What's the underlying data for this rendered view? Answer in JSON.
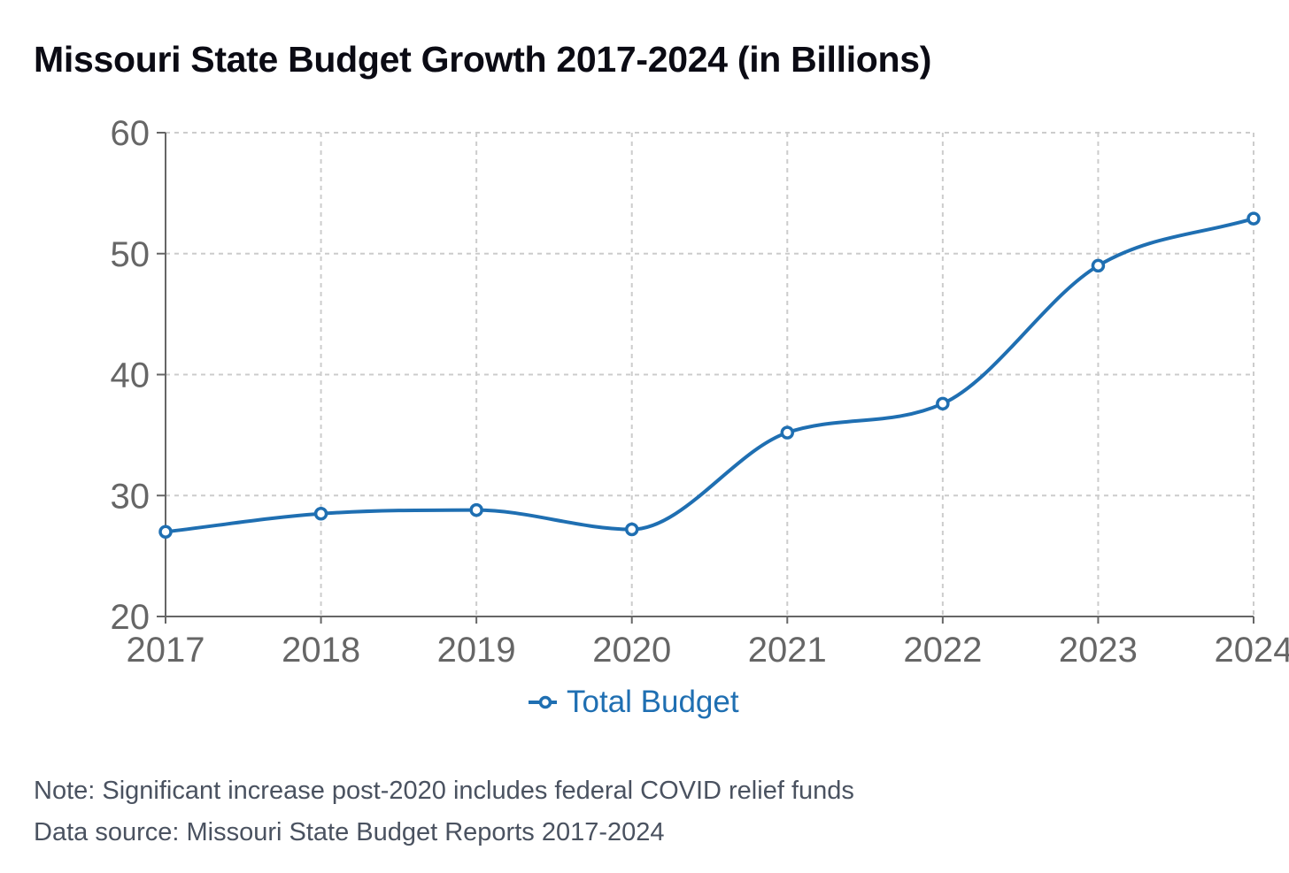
{
  "chart_data": {
    "type": "line",
    "title": "Missouri State Budget Growth 2017-2024 (in Billions)",
    "xlabel": "",
    "ylabel": "",
    "categories": [
      "2017",
      "2018",
      "2019",
      "2020",
      "2021",
      "2022",
      "2023",
      "2024"
    ],
    "series": [
      {
        "name": "Total Budget",
        "color": "#1f6fb2",
        "values": [
          27.0,
          28.5,
          28.8,
          27.2,
          35.2,
          37.6,
          49.0,
          52.9
        ]
      }
    ],
    "ylim": [
      20,
      60
    ],
    "yticks": [
      20,
      30,
      40,
      50,
      60
    ],
    "grid": true,
    "legend": "bottom-center"
  },
  "notes": {
    "note": "Note: Significant increase post-2020 includes federal COVID relief funds",
    "source": "Data source: Missouri State Budget Reports 2017-2024"
  }
}
